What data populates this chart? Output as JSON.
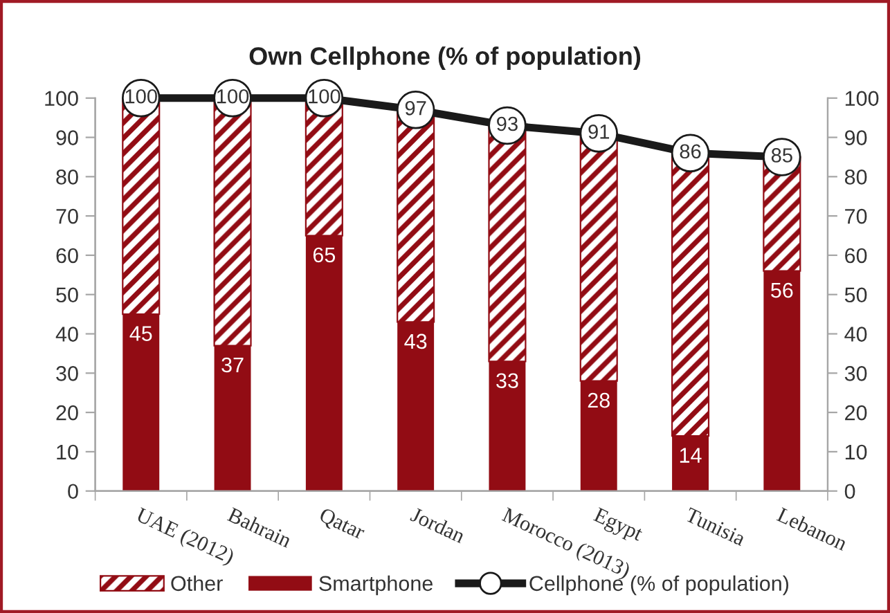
{
  "chart_data": {
    "type": "bar",
    "stacked": true,
    "title": "Own Cellphone (% of population)",
    "categories": [
      "UAE (2012)",
      "Bahrain",
      "Qatar",
      "Jordan",
      "Morocco (2013)",
      "Egypt",
      "Tunisia",
      "Lebanon"
    ],
    "series": [
      {
        "name": "Smartphone",
        "color": "#920c14",
        "values": [
          45,
          37,
          65,
          43,
          33,
          28,
          14,
          56
        ],
        "value_labels": [
          "45",
          "37",
          "65",
          "43",
          "33",
          "28",
          "14",
          "56"
        ]
      },
      {
        "name": "Other",
        "color": "#920c14",
        "values": [
          55,
          63,
          35,
          54,
          60,
          63,
          72,
          29
        ]
      },
      {
        "name": "Cellphone (% of population)",
        "type": "line",
        "color": "#1a1a1a",
        "marker": "circle",
        "values": [
          100,
          100,
          100,
          97,
          93,
          91,
          86,
          85
        ],
        "value_labels": [
          "100",
          "100",
          "100",
          "97",
          "93",
          "91",
          "86",
          "85"
        ]
      }
    ],
    "ylim": [
      0,
      100
    ],
    "yticks": [
      0,
      10,
      20,
      30,
      40,
      50,
      60,
      70,
      80,
      90,
      100
    ],
    "y2lim": [
      0,
      100
    ],
    "y2ticks": [
      0,
      10,
      20,
      30,
      40,
      50,
      60,
      70,
      80,
      90,
      100
    ],
    "legend": "bottom",
    "grid": false
  }
}
